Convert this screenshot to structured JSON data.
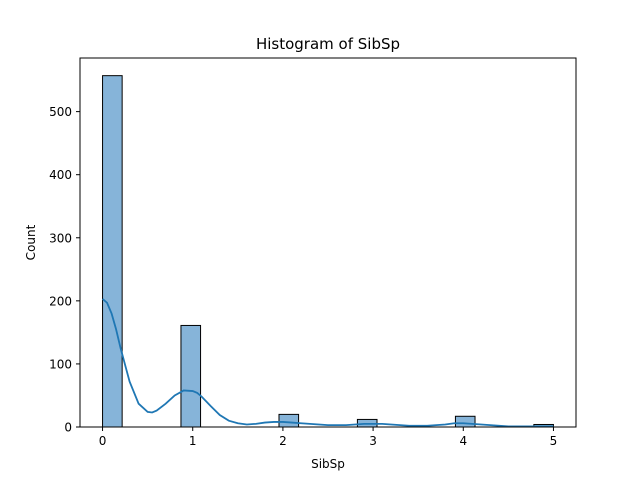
{
  "chart_data": {
    "type": "bar",
    "title": "Histogram of SibSp",
    "xlabel": "SibSp",
    "ylabel": "Count",
    "xlim": [
      -0.25,
      5.25
    ],
    "ylim": [
      0,
      585
    ],
    "xticks": [
      0,
      1,
      2,
      3,
      4,
      5
    ],
    "yticks": [
      0,
      100,
      200,
      300,
      400,
      500
    ],
    "bin_width": 0.2173913,
    "bins": [
      {
        "x0": 0.0,
        "count": 557
      },
      {
        "x0": 0.8695652,
        "count": 161
      },
      {
        "x0": 1.9565217,
        "count": 20
      },
      {
        "x0": 2.826087,
        "count": 12
      },
      {
        "x0": 3.9130435,
        "count": 17
      },
      {
        "x0": 4.7826087,
        "count": 4
      }
    ],
    "kde": {
      "x": [
        0,
        0.05,
        0.1,
        0.15,
        0.2,
        0.3,
        0.4,
        0.5,
        0.55,
        0.6,
        0.7,
        0.8,
        0.9,
        1.0,
        1.05,
        1.1,
        1.2,
        1.3,
        1.4,
        1.5,
        1.6,
        1.7,
        1.8,
        1.9,
        2.0,
        2.1,
        2.2,
        2.3,
        2.4,
        2.5,
        2.6,
        2.7,
        2.8,
        2.9,
        3.0,
        3.1,
        3.2,
        3.3,
        3.4,
        3.5,
        3.6,
        3.7,
        3.8,
        3.9,
        4.0,
        4.1,
        4.2,
        4.3,
        4.4,
        4.5,
        4.6,
        4.7,
        4.8,
        4.9,
        5.0
      ],
      "y": [
        203,
        197,
        180,
        155,
        125,
        72,
        37,
        24,
        23,
        26,
        37,
        50,
        58,
        57,
        54,
        48,
        33,
        19,
        10,
        6,
        4,
        5,
        7,
        8,
        8,
        7,
        6,
        5,
        4,
        3,
        3,
        3,
        4,
        5,
        5,
        5,
        4,
        3,
        2,
        2,
        2,
        3,
        4,
        6,
        6,
        5,
        4,
        3,
        2,
        1,
        1,
        1,
        1,
        1,
        1
      ]
    },
    "colors": {
      "bar_fill": "#86b4d9",
      "kde_line": "#1f77b4"
    },
    "grid": false,
    "legend": "none"
  }
}
